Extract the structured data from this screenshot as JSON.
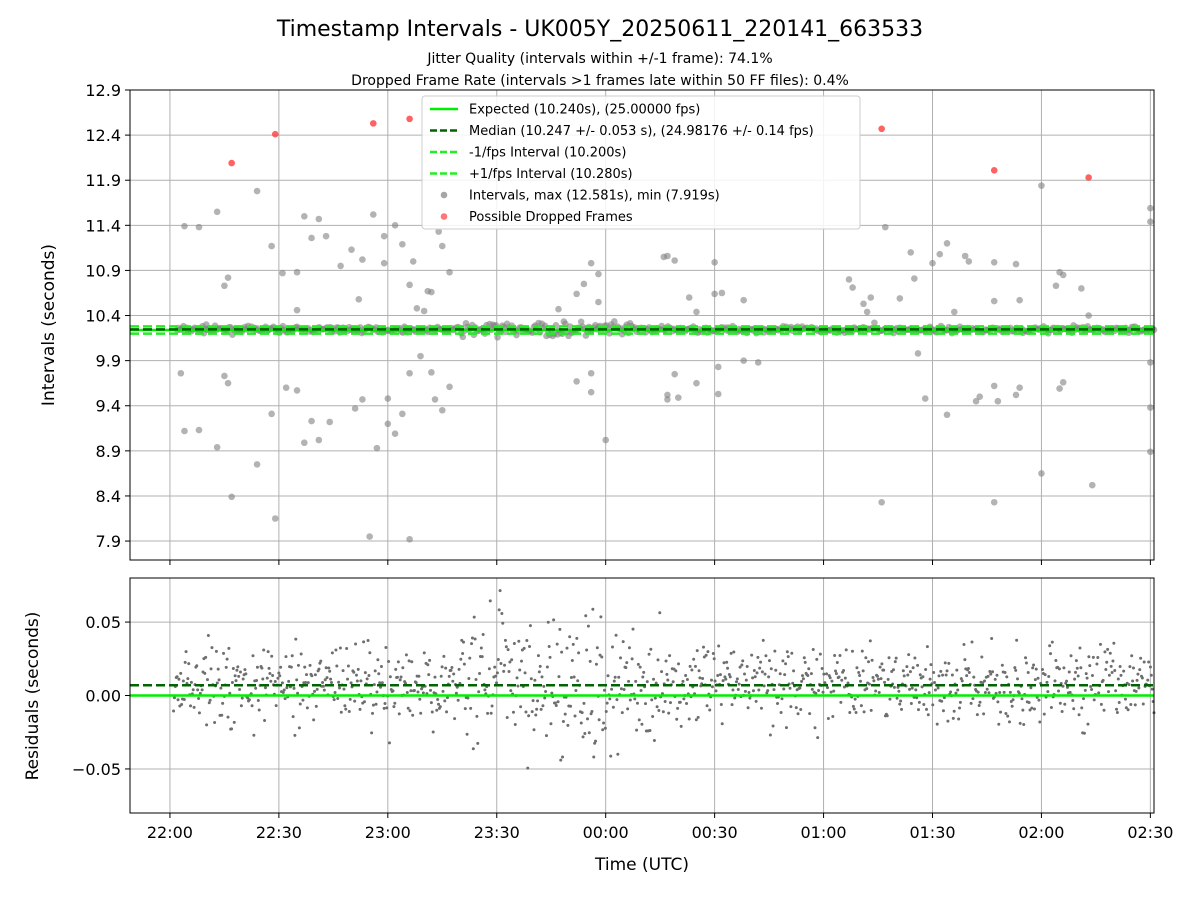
{
  "figure": {
    "title": "Timestamp Intervals - UK005Y_20250611_220141_663533",
    "subtitle_line1": "Jitter Quality (intervals within +/-1 frame): 74.1%",
    "subtitle_line2": "Dropped Frame Rate (intervals >1 frames late within 50 FF files): 0.4%"
  },
  "colors": {
    "expected": "#00ee00",
    "median": "#006400",
    "fps_bounds": "#22ee22",
    "intervals": "#808080",
    "dropped": "#ff3b3b",
    "grid": "#b0b0b0"
  },
  "chart_data": [
    {
      "type": "scatter",
      "name": "intervals",
      "xlabel": "",
      "ylabel": "Intervals (seconds)",
      "x_type": "time",
      "xlim": [
        "21:49",
        "02:31"
      ],
      "x_ticks": [
        "22:00",
        "22:30",
        "23:00",
        "23:30",
        "00:00",
        "00:30",
        "01:00",
        "01:30",
        "02:00",
        "02:30"
      ],
      "ylim": [
        7.69,
        12.9
      ],
      "y_ticks": [
        "7.9",
        "8.4",
        "8.9",
        "9.4",
        "9.9",
        "10.4",
        "10.9",
        "11.4",
        "11.9",
        "12.4",
        "12.9"
      ],
      "grid": true,
      "legend_position": "top-center",
      "reference_lines": [
        {
          "label": "Expected (10.240s), (25.00000 fps)",
          "value": 10.24,
          "style": "solid",
          "color_key": "expected"
        },
        {
          "label": "Median (10.247 +/- 0.053 s), (24.98176 +/- 0.14 fps)",
          "value": 10.247,
          "style": "dashed",
          "color_key": "median"
        },
        {
          "label": "-1/fps Interval (10.200s)",
          "value": 10.2,
          "style": "dashed",
          "color_key": "fps_bounds"
        },
        {
          "label": "+1/fps Interval (10.280s)",
          "value": 10.28,
          "style": "dashed",
          "color_key": "fps_bounds"
        }
      ],
      "series": [
        {
          "name": "Intervals, max (12.581s), min (7.919s)",
          "color_key": "intervals",
          "points": [
            [
              "22:03",
              9.76
            ],
            [
              "22:04",
              11.39
            ],
            [
              "22:04",
              9.12
            ],
            [
              "22:08",
              11.38
            ],
            [
              "22:08",
              9.13
            ],
            [
              "22:10",
              10.3
            ],
            [
              "22:13",
              11.55
            ],
            [
              "22:13",
              8.94
            ],
            [
              "22:15",
              10.73
            ],
            [
              "22:16",
              10.82
            ],
            [
              "22:15",
              9.73
            ],
            [
              "22:16",
              9.65
            ],
            [
              "22:17",
              8.39
            ],
            [
              "22:24",
              11.78
            ],
            [
              "22:24",
              8.75
            ],
            [
              "22:28",
              11.17
            ],
            [
              "22:28",
              9.31
            ],
            [
              "22:29",
              8.15
            ],
            [
              "22:31",
              10.87
            ],
            [
              "22:32",
              9.6
            ],
            [
              "22:35",
              10.46
            ],
            [
              "22:35",
              10.88
            ],
            [
              "22:35",
              9.57
            ],
            [
              "22:37",
              11.5
            ],
            [
              "22:37",
              8.99
            ],
            [
              "22:39",
              11.26
            ],
            [
              "22:39",
              9.23
            ],
            [
              "22:41",
              11.47
            ],
            [
              "22:41",
              9.02
            ],
            [
              "22:43",
              11.28
            ],
            [
              "22:44",
              9.22
            ],
            [
              "22:47",
              10.95
            ],
            [
              "22:50",
              11.13
            ],
            [
              "22:52",
              10.58
            ],
            [
              "22:51",
              9.37
            ],
            [
              "22:53",
              11.02
            ],
            [
              "22:53",
              9.47
            ],
            [
              "22:55",
              7.95
            ],
            [
              "22:56",
              11.52
            ],
            [
              "22:57",
              8.93
            ],
            [
              "22:59",
              11.28
            ],
            [
              "22:59",
              10.98
            ],
            [
              "23:00",
              9.2
            ],
            [
              "23:00",
              9.48
            ],
            [
              "23:02",
              11.4
            ],
            [
              "23:02",
              9.09
            ],
            [
              "23:04",
              11.19
            ],
            [
              "23:04",
              9.31
            ],
            [
              "23:06",
              10.74
            ],
            [
              "23:06",
              9.76
            ],
            [
              "23:07",
              11.0
            ],
            [
              "23:08",
              10.48
            ],
            [
              "23:09",
              9.95
            ],
            [
              "23:10",
              10.45
            ],
            [
              "23:11",
              10.67
            ],
            [
              "23:12",
              10.66
            ],
            [
              "23:12",
              9.77
            ],
            [
              "23:13",
              9.47
            ],
            [
              "23:14",
              11.33
            ],
            [
              "23:15",
              11.17
            ],
            [
              "23:15",
              9.35
            ],
            [
              "23:17",
              10.88
            ],
            [
              "23:17",
              9.61
            ],
            [
              "23:06",
              7.92
            ],
            [
              "23:47",
              10.47
            ],
            [
              "23:52",
              10.64
            ],
            [
              "23:52",
              9.67
            ],
            [
              "23:54",
              10.75
            ],
            [
              "23:56",
              10.98
            ],
            [
              "23:56",
              9.76
            ],
            [
              "23:56",
              9.55
            ],
            [
              "23:58",
              10.86
            ],
            [
              "23:58",
              10.55
            ],
            [
              "00:00",
              9.02
            ],
            [
              "00:16",
              11.05
            ],
            [
              "00:17",
              11.06
            ],
            [
              "00:17",
              9.47
            ],
            [
              "00:19",
              11.01
            ],
            [
              "00:17",
              9.52
            ],
            [
              "00:19",
              9.75
            ],
            [
              "00:20",
              9.49
            ],
            [
              "00:23",
              10.6
            ],
            [
              "00:25",
              10.44
            ],
            [
              "00:25",
              9.65
            ],
            [
              "00:30",
              10.99
            ],
            [
              "00:30",
              10.64
            ],
            [
              "00:31",
              9.53
            ],
            [
              "00:31",
              9.83
            ],
            [
              "00:32",
              10.65
            ],
            [
              "00:38",
              10.57
            ],
            [
              "00:38",
              9.9
            ],
            [
              "00:42",
              9.88
            ],
            [
              "01:07",
              10.8
            ],
            [
              "01:08",
              10.71
            ],
            [
              "01:11",
              10.53
            ],
            [
              "01:12",
              10.44
            ],
            [
              "01:13",
              10.6
            ],
            [
              "01:14",
              10.32
            ],
            [
              "01:16",
              8.33
            ],
            [
              "01:17",
              11.38
            ],
            [
              "01:21",
              10.59
            ],
            [
              "01:24",
              11.1
            ],
            [
              "01:25",
              10.81
            ],
            [
              "01:26",
              9.98
            ],
            [
              "01:28",
              9.48
            ],
            [
              "01:30",
              10.98
            ],
            [
              "01:32",
              11.08
            ],
            [
              "01:34",
              11.2
            ],
            [
              "01:34",
              9.3
            ],
            [
              "01:36",
              10.44
            ],
            [
              "01:39",
              11.06
            ],
            [
              "01:40",
              11.0
            ],
            [
              "01:42",
              9.45
            ],
            [
              "01:43",
              9.5
            ],
            [
              "01:47",
              10.99
            ],
            [
              "01:47",
              10.56
            ],
            [
              "01:47",
              9.62
            ],
            [
              "01:47",
              8.33
            ],
            [
              "01:48",
              9.45
            ],
            [
              "01:53",
              10.97
            ],
            [
              "01:54",
              10.57
            ],
            [
              "01:53",
              9.52
            ],
            [
              "01:54",
              9.6
            ],
            [
              "02:00",
              11.84
            ],
            [
              "02:00",
              8.65
            ],
            [
              "02:04",
              10.73
            ],
            [
              "02:05",
              10.88
            ],
            [
              "02:06",
              10.85
            ],
            [
              "02:05",
              9.59
            ],
            [
              "02:06",
              9.66
            ],
            [
              "02:11",
              10.7
            ],
            [
              "02:13",
              10.4
            ],
            [
              "02:14",
              8.52
            ],
            [
              "02:30",
              11.59
            ],
            [
              "02:30",
              11.44
            ],
            [
              "02:30",
              9.38
            ],
            [
              "02:30",
              8.89
            ],
            [
              "02:30",
              9.88
            ]
          ]
        },
        {
          "name": "Possible Dropped Frames",
          "color_key": "dropped",
          "points": [
            [
              "22:17",
              12.09
            ],
            [
              "22:29",
              12.41
            ],
            [
              "22:56",
              12.53
            ],
            [
              "23:06",
              12.58
            ],
            [
              "01:16",
              12.47
            ],
            [
              "01:47",
              12.01
            ],
            [
              "02:13",
              11.93
            ]
          ]
        }
      ],
      "legend": [
        {
          "label": "Expected (10.240s), (25.00000 fps)",
          "marker": "solid-line",
          "color_key": "expected"
        },
        {
          "label": "Median (10.247 +/- 0.053 s), (24.98176 +/- 0.14 fps)",
          "marker": "dashed-line",
          "color_key": "median"
        },
        {
          "label": "-1/fps Interval (10.200s)",
          "marker": "dashed-line",
          "color_key": "fps_bounds"
        },
        {
          "label": "+1/fps Interval (10.280s)",
          "marker": "dashed-line",
          "color_key": "fps_bounds"
        },
        {
          "label": "Intervals, max (12.581s), min (7.919s)",
          "marker": "dot",
          "color_key": "intervals"
        },
        {
          "label": "Possible Dropped Frames",
          "marker": "dot",
          "color_key": "dropped"
        }
      ]
    },
    {
      "type": "scatter",
      "name": "residuals",
      "xlabel": "Time (UTC)",
      "ylabel": "Residuals (seconds)",
      "x_type": "time",
      "xlim": [
        "21:49",
        "02:31"
      ],
      "x_ticks": [
        "22:00",
        "22:30",
        "23:00",
        "23:30",
        "00:00",
        "00:30",
        "01:00",
        "01:30",
        "02:00",
        "02:30"
      ],
      "ylim": [
        -0.08,
        0.08
      ],
      "y_ticks": [
        "0.05",
        "0.00",
        "−0.05"
      ],
      "grid": true,
      "reference_lines": [
        {
          "label": "",
          "value": 0.0,
          "style": "solid",
          "color_key": "expected"
        },
        {
          "label": "",
          "value": 0.007,
          "style": "dashed",
          "color_key": "median"
        }
      ],
      "residuals_count": 1100,
      "residuals_start": "22:01",
      "residuals_end": "02:31",
      "color_key": "intervals"
    }
  ]
}
